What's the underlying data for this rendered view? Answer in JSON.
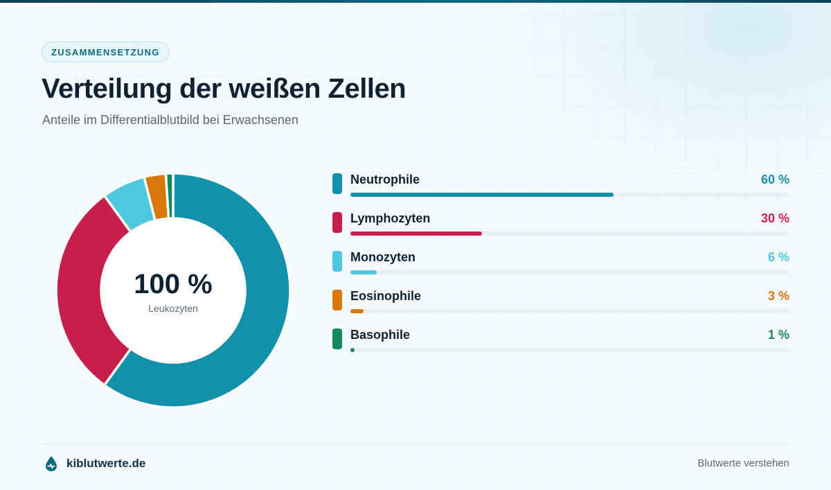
{
  "header": {
    "badge": "ZUSAMMENSETZUNG",
    "title": "Verteilung der weißen Zellen",
    "subtitle": "Anteile im Differentialblutbild bei Erwachsenen"
  },
  "center": {
    "value": "100 %",
    "label": "Leukozyten"
  },
  "chart_data": {
    "type": "pie",
    "title": "Verteilung der weißen Zellen",
    "subtitle": "Anteile im Differentialblutbild bei Erwachsenen",
    "categories": [
      "Neutrophile",
      "Lymphozyten",
      "Monozyten",
      "Eosinophile",
      "Basophile"
    ],
    "values": [
      60,
      30,
      6,
      3,
      1
    ],
    "value_labels": [
      "60 %",
      "30 %",
      "6 %",
      "3 %",
      "1 %"
    ],
    "colors": [
      "#1391ab",
      "#c81e4c",
      "#4fc8df",
      "#d9780a",
      "#138a5e"
    ],
    "donut": true,
    "legend": "right"
  },
  "footer": {
    "brand": "kiblutwerte.de",
    "tagline": "Blutwerte verstehen",
    "brand_icon": "blood-drop-icon"
  },
  "colors": {
    "accent": "#0e6a80",
    "heading": "#0f2233",
    "muted": "#5b6776"
  }
}
